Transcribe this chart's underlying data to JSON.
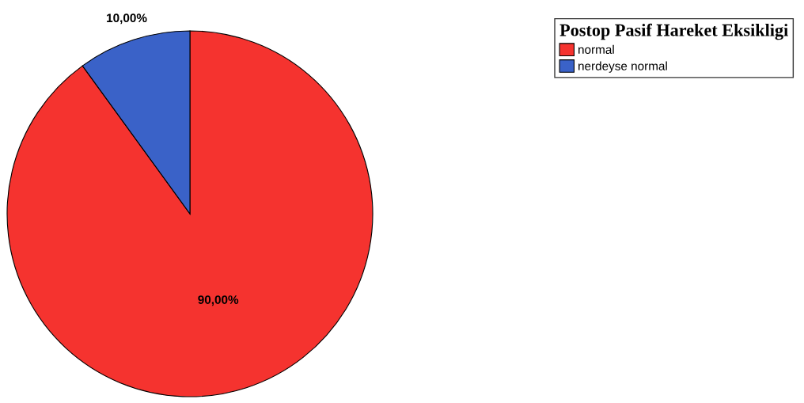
{
  "chart_data": {
    "type": "pie",
    "legend_title": "Postop Pasif Hareket Eksikligi",
    "categories": [
      "normal",
      "nerdeyse normal"
    ],
    "values": [
      90,
      10
    ],
    "colors": [
      "#f5332f",
      "#3a62c8"
    ],
    "value_labels": [
      "90,00%",
      "10,00%"
    ],
    "legend": "top right"
  }
}
